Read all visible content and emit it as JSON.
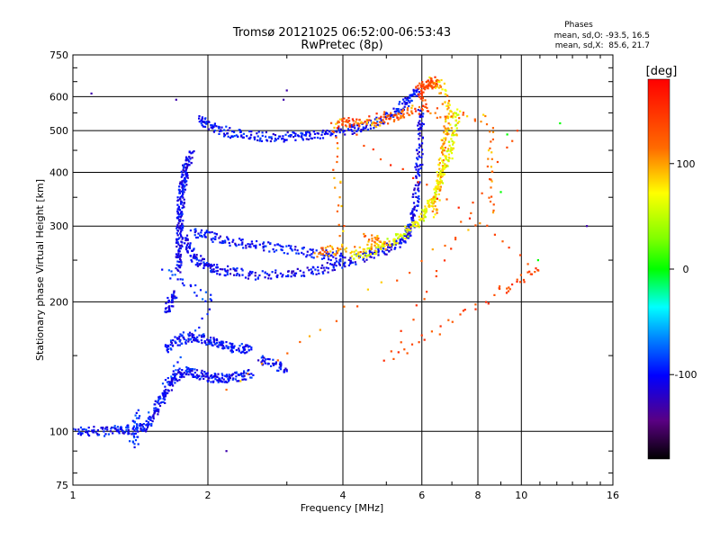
{
  "chart_data": {
    "type": "scatter",
    "title": "Tromsø 20121025 06:52:00-06:53:43",
    "subtitle": "RwPretec (8p)",
    "xlabel": "Frequency [MHz]",
    "ylabel": "Stationary phase Virtual Height [km]",
    "x_scale": "log",
    "y_scale": "log",
    "xlim": [
      1,
      16
    ],
    "ylim": [
      75,
      750
    ],
    "x_ticks": [
      1,
      2,
      4,
      6,
      8,
      10,
      16
    ],
    "x_tick_labels": [
      "1",
      "2",
      "4",
      "6",
      "8",
      "10",
      "16"
    ],
    "y_ticks": [
      75,
      100,
      200,
      300,
      400,
      500,
      600,
      750
    ],
    "y_tick_labels": [
      "75",
      "100",
      "200",
      "300",
      "400",
      "500",
      "600",
      "750"
    ],
    "grid": true,
    "phase_legend": {
      "title": "Phases",
      "line1": "mean, sd,O: -93.5, 16.5",
      "line2": "mean, sd,X:  85.6, 21.7"
    },
    "colorbar": {
      "label": "[deg]",
      "range": [
        -180,
        180
      ],
      "ticks": [
        100,
        0,
        -100
      ],
      "tick_labels": [
        "100",
        "0",
        "-100"
      ]
    },
    "traces": [
      {
        "kind": "O",
        "phase": -100,
        "points": [
          [
            1.0,
            100
          ],
          [
            1.1,
            100
          ],
          [
            1.2,
            100
          ],
          [
            1.3,
            101
          ],
          [
            1.38,
            101
          ],
          [
            1.45,
            103
          ],
          [
            1.52,
            110
          ],
          [
            1.58,
            118
          ],
          [
            1.62,
            126
          ],
          [
            1.67,
            132
          ],
          [
            1.72,
            136
          ],
          [
            1.8,
            138
          ],
          [
            1.9,
            136
          ],
          [
            2.0,
            134
          ],
          [
            2.1,
            133
          ],
          [
            2.2,
            133
          ],
          [
            2.35,
            134
          ],
          [
            2.5,
            136
          ]
        ]
      },
      {
        "kind": "O",
        "phase": -105,
        "points": [
          [
            1.62,
            190
          ],
          [
            1.65,
            200
          ],
          [
            1.68,
            210
          ]
        ]
      },
      {
        "kind": "O",
        "phase": -100,
        "points": [
          [
            1.6,
            155
          ],
          [
            1.7,
            162
          ],
          [
            1.8,
            166
          ],
          [
            1.9,
            165
          ],
          [
            2.0,
            163
          ],
          [
            2.1,
            160
          ],
          [
            2.2,
            157
          ],
          [
            2.35,
            156
          ],
          [
            2.5,
            155
          ]
        ]
      },
      {
        "kind": "O",
        "phase": -100,
        "points": [
          [
            2.6,
            148
          ],
          [
            2.8,
            143
          ],
          [
            3.0,
            138
          ]
        ]
      },
      {
        "kind": "O",
        "phase": -105,
        "points": [
          [
            1.72,
            235
          ],
          [
            1.72,
            260
          ],
          [
            1.73,
            280
          ],
          [
            1.73,
            300
          ],
          [
            1.74,
            320
          ],
          [
            1.74,
            340
          ],
          [
            1.75,
            360
          ],
          [
            1.76,
            380
          ],
          [
            1.78,
            400
          ],
          [
            1.8,
            420
          ],
          [
            1.85,
            445
          ]
        ]
      },
      {
        "kind": "O",
        "phase": -105,
        "points": [
          [
            1.78,
            280
          ],
          [
            1.82,
            262
          ],
          [
            1.9,
            250
          ],
          [
            2.0,
            242
          ],
          [
            2.1,
            238
          ],
          [
            2.3,
            234
          ],
          [
            2.6,
            231
          ],
          [
            3.0,
            232
          ],
          [
            3.4,
            236
          ],
          [
            3.8,
            242
          ],
          [
            4.2,
            250
          ],
          [
            4.6,
            258
          ],
          [
            5.0,
            265
          ],
          [
            5.3,
            273
          ],
          [
            5.55,
            285
          ],
          [
            5.7,
            305
          ],
          [
            5.8,
            335
          ],
          [
            5.88,
            380
          ],
          [
            5.93,
            430
          ],
          [
            5.97,
            500
          ],
          [
            5.99,
            560
          ]
        ]
      },
      {
        "kind": "O",
        "phase": -100,
        "points": [
          [
            1.85,
            290
          ],
          [
            2.0,
            285
          ],
          [
            2.2,
            278
          ],
          [
            2.5,
            272
          ],
          [
            2.8,
            268
          ],
          [
            3.2,
            262
          ],
          [
            3.6,
            258
          ],
          [
            4.0,
            254
          ]
        ]
      },
      {
        "kind": "O",
        "phase": -100,
        "points": [
          [
            1.92,
            535
          ],
          [
            2.0,
            515
          ],
          [
            2.15,
            500
          ],
          [
            2.35,
            490
          ],
          [
            2.6,
            485
          ],
          [
            2.9,
            483
          ],
          [
            3.2,
            485
          ],
          [
            3.5,
            490
          ],
          [
            3.9,
            495
          ],
          [
            4.3,
            505
          ],
          [
            4.7,
            520
          ],
          [
            5.1,
            540
          ],
          [
            5.4,
            565
          ],
          [
            5.65,
            590
          ],
          [
            5.85,
            620
          ]
        ]
      },
      {
        "kind": "O",
        "phase": -90,
        "points": [
          [
            1.6,
            235
          ],
          [
            2.05,
            200
          ],
          [
            1.35,
            92
          ],
          [
            1.4,
            112
          ]
        ]
      },
      {
        "kind": "X",
        "phase": 85,
        "points": [
          [
            4.2,
            255
          ],
          [
            4.6,
            262
          ],
          [
            5.0,
            272
          ],
          [
            5.4,
            285
          ],
          [
            5.8,
            300
          ],
          [
            6.1,
            320
          ],
          [
            6.35,
            345
          ],
          [
            6.55,
            375
          ],
          [
            6.75,
            410
          ],
          [
            6.95,
            450
          ],
          [
            7.1,
            500
          ],
          [
            7.2,
            560
          ]
        ]
      },
      {
        "kind": "X",
        "phase": 100,
        "points": [
          [
            6.4,
            320
          ],
          [
            6.5,
            360
          ],
          [
            6.6,
            400
          ],
          [
            6.7,
            450
          ],
          [
            6.8,
            500
          ],
          [
            6.9,
            560
          ],
          [
            6.6,
            640
          ],
          [
            6.3,
            650
          ]
        ]
      },
      {
        "kind": "X",
        "phase": 115,
        "points": [
          [
            4.5,
            285
          ],
          [
            5.0,
            270
          ],
          [
            3.5,
            260
          ],
          [
            4.0,
            265
          ],
          [
            3.8,
            520
          ],
          [
            4.6,
            520
          ],
          [
            5.2,
            540
          ],
          [
            5.7,
            560
          ],
          [
            8.5,
            530
          ],
          [
            8.6,
            320
          ],
          [
            2.2,
            125
          ]
        ]
      },
      {
        "kind": "X",
        "phase": 140,
        "points": [
          [
            6.4,
            650
          ],
          [
            6.2,
            640
          ],
          [
            5.9,
            630
          ],
          [
            6.1,
            560
          ],
          [
            4.3,
            525
          ],
          [
            3.9,
            520
          ],
          [
            11.0,
            240
          ],
          [
            8.9,
            210
          ],
          [
            5.0,
            145
          ],
          [
            9.8,
            500
          ]
        ]
      },
      {
        "kind": "scatter",
        "phase": 0,
        "points": [
          [
            12.2,
            520
          ],
          [
            9.0,
            360
          ],
          [
            10.9,
            250
          ],
          [
            9.3,
            490
          ]
        ]
      },
      {
        "kind": "scatter",
        "phase": -130,
        "points": [
          [
            14.0,
            300
          ],
          [
            3.0,
            620
          ],
          [
            2.95,
            590
          ],
          [
            1.7,
            590
          ],
          [
            2.2,
            90
          ],
          [
            1.1,
            610
          ]
        ]
      }
    ]
  }
}
